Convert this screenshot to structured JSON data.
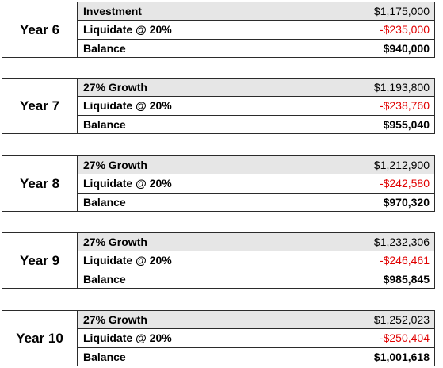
{
  "blocks": [
    {
      "year": "Year 6",
      "rows": [
        {
          "label": "Investment",
          "value": "$1,175,000"
        },
        {
          "label": "Liquidate @ 20%",
          "value": "-$235,000"
        },
        {
          "label": "Balance",
          "value": "$940,000"
        }
      ]
    },
    {
      "year": "Year 7",
      "rows": [
        {
          "label": "27% Growth",
          "value": "$1,193,800"
        },
        {
          "label": "Liquidate @ 20%",
          "value": "-$238,760"
        },
        {
          "label": "Balance",
          "value": "$955,040"
        }
      ]
    },
    {
      "year": "Year 8",
      "rows": [
        {
          "label": "27% Growth",
          "value": "$1,212,900"
        },
        {
          "label": "Liquidate @ 20%",
          "value": "-$242,580"
        },
        {
          "label": "Balance",
          "value": "$970,320"
        }
      ]
    },
    {
      "year": "Year 9",
      "rows": [
        {
          "label": "27% Growth",
          "value": "$1,232,306"
        },
        {
          "label": "Liquidate @ 20%",
          "value": "-$246,461"
        },
        {
          "label": "Balance",
          "value": "$985,845"
        }
      ]
    },
    {
      "year": "Year 10",
      "rows": [
        {
          "label": "27% Growth",
          "value": "$1,252,023"
        },
        {
          "label": "Liquidate @ 20%",
          "value": "-$250,404"
        },
        {
          "label": "Balance",
          "value": "$1,001,618"
        }
      ]
    }
  ],
  "colors": {
    "header_row_bg": "#e6e6e6",
    "negative_value": "#e00000",
    "border": "#2b2b2b"
  }
}
